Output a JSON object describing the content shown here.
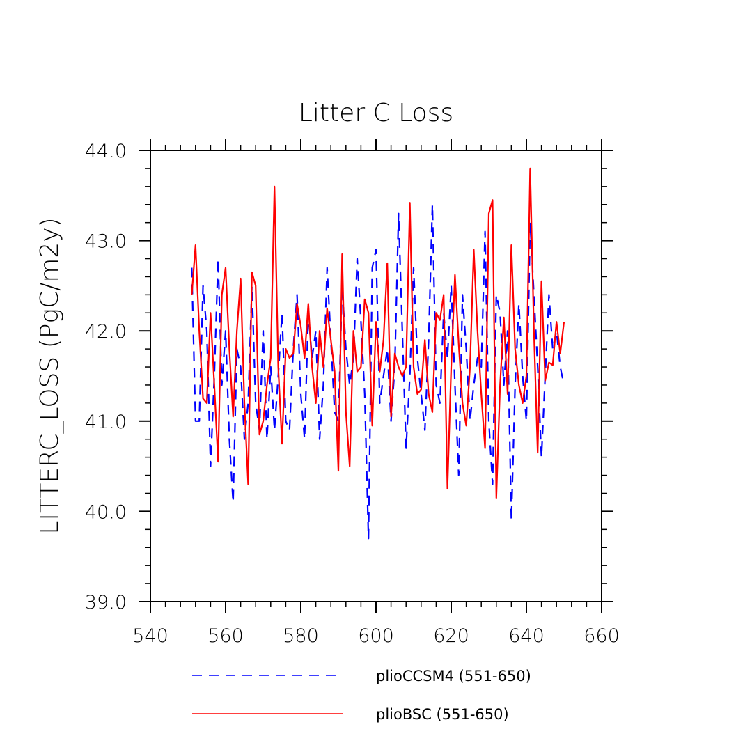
{
  "chart_data": {
    "type": "line",
    "title": "Litter C Loss",
    "xlabel": "",
    "ylabel": "LITTERC_LOSS  (PgC/m2y)",
    "xlim": [
      540,
      660
    ],
    "ylim": [
      39.0,
      44.0
    ],
    "x_ticks": [
      540,
      560,
      580,
      600,
      620,
      640,
      660
    ],
    "x_tick_labels": [
      "540",
      "560",
      "580",
      "600",
      "620",
      "640",
      "660"
    ],
    "y_ticks": [
      39.0,
      40.0,
      41.0,
      42.0,
      43.0,
      44.0
    ],
    "y_tick_labels": [
      "39.0",
      "40.0",
      "41.0",
      "42.0",
      "43.0",
      "44.0"
    ],
    "grid": false,
    "legend_position": "bottom",
    "series": [
      {
        "name": "plioCCSM4 (551-650)",
        "color": "#0000ff",
        "style": "dashed",
        "x": [
          551,
          552,
          553,
          554,
          555,
          556,
          557,
          558,
          559,
          560,
          561,
          562,
          563,
          564,
          565,
          566,
          567,
          568,
          569,
          570,
          571,
          572,
          573,
          574,
          575,
          576,
          577,
          578,
          579,
          580,
          581,
          582,
          583,
          584,
          585,
          586,
          587,
          588,
          589,
          590,
          591,
          592,
          593,
          594,
          595,
          596,
          597,
          598,
          599,
          600,
          601,
          602,
          603,
          604,
          605,
          606,
          607,
          608,
          609,
          610,
          611,
          612,
          613,
          614,
          615,
          616,
          617,
          618,
          619,
          620,
          621,
          622,
          623,
          624,
          625,
          626,
          627,
          628,
          629,
          630,
          631,
          632,
          633,
          634,
          635,
          636,
          637,
          638,
          639,
          640,
          641,
          642,
          643,
          644,
          645,
          646,
          647,
          648,
          649,
          650
        ],
        "values": [
          42.7,
          41.0,
          41.0,
          42.5,
          42.0,
          40.5,
          41.5,
          42.8,
          41.4,
          42.0,
          40.8,
          40.1,
          41.8,
          41.6,
          40.8,
          41.2,
          42.5,
          41.2,
          40.9,
          42.0,
          40.8,
          41.6,
          40.9,
          41.5,
          42.2,
          41.0,
          40.9,
          41.8,
          42.4,
          41.3,
          40.8,
          42.2,
          41.7,
          42.0,
          40.8,
          41.4,
          42.7,
          41.9,
          41.1,
          41.0,
          42.5,
          41.8,
          41.4,
          41.7,
          42.8,
          42.1,
          41.3,
          39.7,
          42.7,
          42.9,
          41.2,
          41.5,
          41.8,
          41.0,
          41.6,
          43.3,
          42.0,
          40.7,
          41.5,
          42.7,
          41.7,
          41.3,
          40.9,
          41.9,
          43.4,
          41.4,
          41.2,
          42.2,
          41.7,
          42.5,
          41.4,
          40.4,
          42.4,
          41.8,
          41.0,
          41.4,
          41.7,
          41.6,
          43.1,
          41.0,
          40.3,
          42.4,
          42.2,
          41.4,
          42.0,
          39.9,
          41.4,
          42.3,
          41.5,
          41.0,
          43.2,
          42.4,
          41.6,
          40.6,
          41.5,
          42.4,
          41.8,
          42.0,
          41.6,
          41.4
        ]
      },
      {
        "name": "plioBSC (551-650)",
        "color": "#ff0000",
        "style": "solid",
        "x": [
          551,
          552,
          553,
          554,
          555,
          556,
          557,
          558,
          559,
          560,
          561,
          562,
          563,
          564,
          565,
          566,
          567,
          568,
          569,
          570,
          571,
          572,
          573,
          574,
          575,
          576,
          577,
          578,
          579,
          580,
          581,
          582,
          583,
          584,
          585,
          586,
          587,
          588,
          589,
          590,
          591,
          592,
          593,
          594,
          595,
          596,
          597,
          598,
          599,
          600,
          601,
          602,
          603,
          604,
          605,
          606,
          607,
          608,
          609,
          610,
          611,
          612,
          613,
          614,
          615,
          616,
          617,
          618,
          619,
          620,
          621,
          622,
          623,
          624,
          625,
          626,
          627,
          628,
          629,
          630,
          631,
          632,
          633,
          634,
          635,
          636,
          637,
          638,
          639,
          640,
          641,
          642,
          643,
          644,
          645,
          646,
          647,
          648,
          649,
          650
        ],
        "values": [
          42.4,
          42.95,
          42.0,
          41.25,
          41.2,
          42.2,
          41.4,
          40.55,
          42.4,
          42.7,
          41.8,
          41.05,
          42.0,
          42.58,
          41.2,
          40.3,
          42.65,
          42.5,
          40.85,
          41.0,
          41.4,
          41.7,
          43.6,
          41.6,
          40.75,
          41.8,
          41.7,
          41.75,
          42.3,
          42.05,
          41.7,
          42.3,
          41.6,
          41.2,
          42.0,
          41.6,
          42.25,
          41.9,
          41.55,
          40.45,
          42.85,
          41.1,
          40.5,
          42.0,
          41.55,
          41.6,
          42.35,
          42.2,
          40.95,
          42.1,
          41.55,
          41.9,
          42.75,
          41.05,
          41.75,
          41.6,
          41.5,
          41.6,
          43.42,
          41.6,
          41.3,
          41.35,
          41.9,
          41.3,
          41.1,
          42.2,
          42.12,
          42.4,
          40.25,
          41.6,
          42.62,
          41.85,
          41.2,
          40.95,
          41.6,
          42.9,
          42.0,
          41.3,
          40.7,
          43.3,
          43.45,
          40.15,
          41.4,
          42.15,
          41.3,
          42.95,
          41.8,
          41.4,
          41.2,
          41.5,
          43.8,
          42.0,
          40.65,
          42.55,
          41.45,
          41.65,
          41.62,
          42.1,
          41.75,
          42.1
        ]
      }
    ]
  }
}
